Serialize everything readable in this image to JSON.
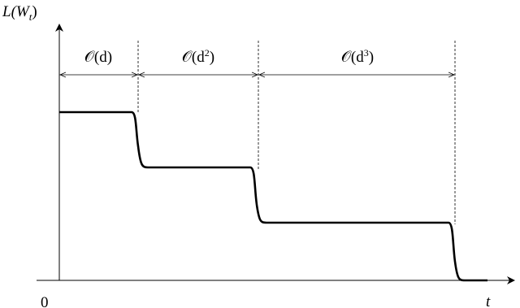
{
  "y_axis": {
    "label_base": "L(W",
    "label_sub": "t",
    "label_close": ")"
  },
  "x_axis": {
    "label": "t",
    "origin": "0"
  },
  "intervals": [
    {
      "base": "𝒪(d",
      "sup": null,
      "close": ")"
    },
    {
      "base": "𝒪(d",
      "sup": "2",
      "close": ")"
    },
    {
      "base": "𝒪(d",
      "sup": "3",
      "close": ")"
    }
  ]
}
